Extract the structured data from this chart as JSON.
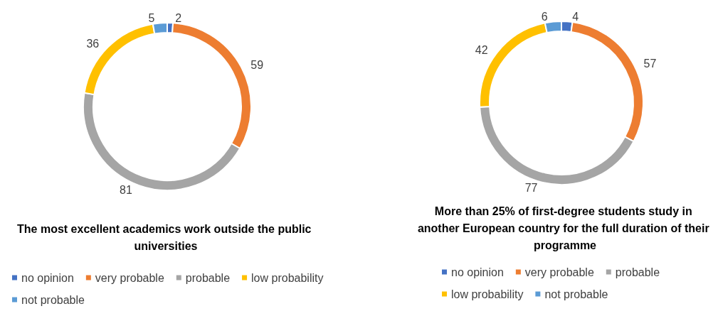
{
  "chart_data": [
    {
      "type": "donut",
      "title": "The most excellent academics work outside the public universities",
      "categories": [
        "no opinion",
        "very probable",
        "probable",
        "low probability",
        "not probable"
      ],
      "values": [
        2,
        59,
        81,
        36,
        5
      ],
      "colors": [
        "#4472c4",
        "#ed7d31",
        "#a5a5a5",
        "#ffc000",
        "#5b9bd5"
      ],
      "data_labels": true,
      "legend": "bottom"
    },
    {
      "type": "donut",
      "title": "More than 25% of first-degree students study in another European country for the full duration of their programme",
      "categories": [
        "no opinion",
        "very probable",
        "probable",
        "low probability",
        "not probable"
      ],
      "values": [
        4,
        57,
        77,
        42,
        6
      ],
      "colors": [
        "#4472c4",
        "#ed7d31",
        "#a5a5a5",
        "#ffc000",
        "#5b9bd5"
      ],
      "data_labels": true,
      "legend": "bottom"
    }
  ]
}
